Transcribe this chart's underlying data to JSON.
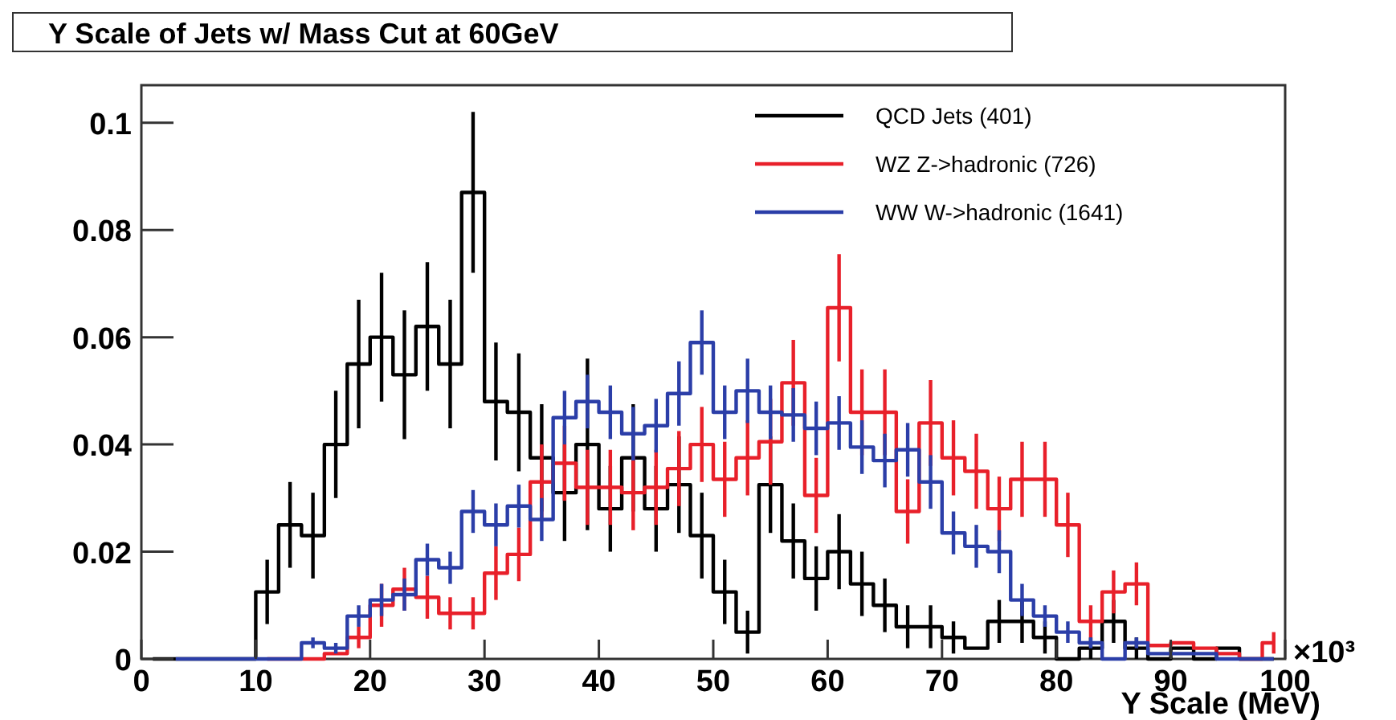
{
  "chart_data": {
    "type": "step",
    "title": "Y Scale of Jets w/ Mass Cut at 60GeV",
    "xlabel": "Y Scale (MeV)",
    "annotations": [
      "×10³"
    ],
    "x": [
      1,
      3,
      5,
      7,
      9,
      11,
      13,
      15,
      17,
      19,
      21,
      23,
      25,
      27,
      29,
      31,
      33,
      35,
      37,
      39,
      41,
      43,
      45,
      47,
      49,
      51,
      53,
      55,
      57,
      59,
      61,
      63,
      65,
      67,
      69,
      71,
      73,
      75,
      77,
      79,
      81,
      83,
      85,
      87,
      89,
      91,
      93,
      95,
      97,
      99
    ],
    "xlim": [
      0,
      100
    ],
    "xticks": [
      0,
      10,
      20,
      30,
      40,
      50,
      60,
      70,
      80,
      90,
      100
    ],
    "ylim": [
      0,
      0.107
    ],
    "yticks": [
      0,
      0.02,
      0.04,
      0.06,
      0.08,
      0.1
    ],
    "legend": "top right",
    "grid": false,
    "series": [
      {
        "name": "QCD Jets (401)",
        "color": "#000000",
        "values": [
          0,
          0,
          0,
          0,
          0,
          0.0125,
          0.025,
          0.023,
          0.04,
          0.055,
          0.06,
          0.053,
          0.062,
          0.055,
          0.087,
          0.048,
          0.046,
          0.0375,
          0.031,
          0.04,
          0.028,
          0.0375,
          0.028,
          0.0325,
          0.023,
          0.0125,
          0.005,
          0.0325,
          0.022,
          0.015,
          0.02,
          0.014,
          0.01,
          0.006,
          0.006,
          0.004,
          0.002,
          0.007,
          0.007,
          0.004,
          0,
          0.002,
          0.007,
          0.002,
          0,
          0.002,
          0,
          0.002,
          0,
          0
        ],
        "errors": [
          null,
          null,
          null,
          null,
          null,
          0.006,
          0.008,
          0.008,
          0.01,
          0.012,
          0.012,
          0.012,
          0.012,
          0.012,
          0.015,
          0.011,
          0.011,
          0.01,
          0.009,
          0.016,
          0.008,
          0.01,
          0.008,
          0.009,
          0.008,
          0.006,
          0.004,
          0.009,
          0.007,
          0.006,
          0.007,
          0.006,
          0.005,
          0.004,
          0.004,
          0.003,
          null,
          0.004,
          0.004,
          0.003,
          null,
          0.002,
          0.004,
          0.002,
          null,
          null,
          null,
          null,
          null,
          null
        ]
      },
      {
        "name": "WZ Z->hadronic (726)",
        "color": "#e8202a",
        "values": [
          null,
          null,
          null,
          null,
          null,
          0,
          0,
          0,
          0.001,
          0.004,
          0.01,
          0.013,
          0.0115,
          0.0085,
          0.0085,
          0.016,
          0.0195,
          0.033,
          0.0365,
          0.032,
          0.032,
          0.031,
          0.032,
          0.0355,
          0.04,
          0.0335,
          0.0375,
          0.0405,
          0.0515,
          0.0305,
          0.0655,
          0.046,
          0.046,
          0.0275,
          0.044,
          0.0375,
          0.035,
          0.028,
          0.0335,
          0.0335,
          0.025,
          0.007,
          0.0125,
          0.014,
          0.0025,
          0.003,
          0.002,
          0.001,
          0,
          0.003
        ],
        "errors": [
          null,
          null,
          null,
          null,
          null,
          null,
          null,
          null,
          null,
          0.002,
          0.004,
          0.004,
          0.004,
          0.003,
          0.003,
          0.005,
          0.005,
          0.007,
          0.007,
          0.007,
          0.007,
          0.007,
          0.007,
          0.007,
          0.007,
          0.007,
          0.007,
          0.008,
          0.008,
          0.007,
          0.01,
          0.008,
          0.008,
          0.006,
          0.008,
          0.007,
          0.007,
          0.006,
          0.007,
          0.007,
          0.006,
          0.003,
          0.004,
          0.004,
          null,
          null,
          null,
          null,
          null,
          0.002
        ]
      },
      {
        "name": "WW W->hadronic (1641)",
        "color": "#2b3ea8",
        "values": [
          null,
          0,
          0,
          0,
          0,
          0,
          0,
          0.003,
          0.002,
          0.008,
          0.011,
          0.012,
          0.0185,
          0.017,
          0.0275,
          0.025,
          0.0285,
          0.026,
          0.045,
          0.048,
          0.046,
          0.042,
          0.0435,
          0.0495,
          0.059,
          0.046,
          0.05,
          0.046,
          0.0455,
          0.043,
          0.044,
          0.0395,
          0.037,
          0.039,
          0.033,
          0.0235,
          0.021,
          0.02,
          0.011,
          0.008,
          0.005,
          0.003,
          0,
          0.003,
          0.001,
          0.001,
          0.001,
          0,
          0,
          0
        ],
        "errors": [
          null,
          null,
          null,
          null,
          null,
          null,
          null,
          0.001,
          0.001,
          0.002,
          0.003,
          0.003,
          0.003,
          0.003,
          0.004,
          0.004,
          0.004,
          0.004,
          0.005,
          0.005,
          0.005,
          0.005,
          0.005,
          0.006,
          0.006,
          0.005,
          0.006,
          0.005,
          0.005,
          0.005,
          0.005,
          0.005,
          0.005,
          0.005,
          0.005,
          0.004,
          0.004,
          0.004,
          0.003,
          0.002,
          0.002,
          0.001,
          null,
          0.001,
          null,
          null,
          null,
          null,
          null,
          null
        ]
      }
    ]
  }
}
